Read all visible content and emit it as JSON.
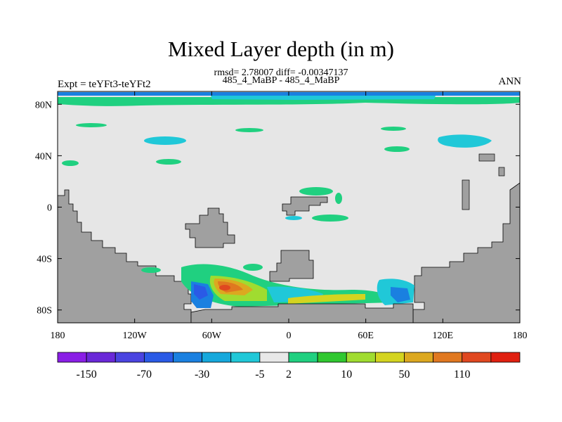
{
  "title": "Mixed Layer depth (in m)",
  "subtitle": "rmsd= 2.78007 diff= -0.00347137",
  "subtitle2": "485_4_MaBP - 485_4_MaBP",
  "left_label": "Expt = teYFt3-teYFt2",
  "right_label": "ANN",
  "map": {
    "lon_range": [
      -180,
      180
    ],
    "lat_range": [
      -90,
      90
    ],
    "x_ticks": [
      "180",
      "120W",
      "60W",
      "0",
      "60E",
      "120E",
      "180"
    ],
    "y_ticks": [
      "80N",
      "40N",
      "0",
      "40S",
      "80S"
    ],
    "background_color": "#e6e6e6",
    "land_color": "#a0a0a0"
  },
  "colorbar": {
    "labels": [
      "-150",
      "-70",
      "-30",
      "-5",
      "2",
      "10",
      "50",
      "110"
    ],
    "colors": [
      "#8a1ee6",
      "#6a28d8",
      "#4a44e0",
      "#2a5ae6",
      "#1a80e0",
      "#16a8dc",
      "#20c8d8",
      "#e8e8e8",
      "#20d080",
      "#30c830",
      "#a0dc30",
      "#d4d420",
      "#dca820",
      "#e07820",
      "#e04820",
      "#e02010"
    ]
  }
}
